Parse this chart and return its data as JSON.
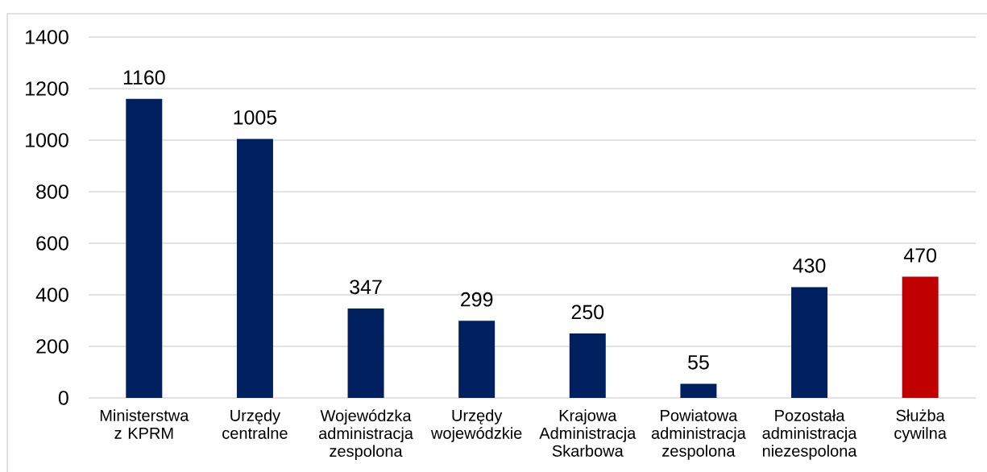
{
  "chart_data": {
    "type": "bar",
    "categories": [
      "Ministerstwa z KPRM",
      "Urzędy centralne",
      "Wojewódzka administracja zespolona",
      "Urzędy wojewódzkie",
      "Krajowa Administracja Skarbowa",
      "Powiatowa administracja zespolona",
      "Pozostała administracja niezespolona",
      "Służba cywilna"
    ],
    "values": [
      1160,
      1005,
      347,
      299,
      250,
      55,
      430,
      470
    ],
    "colors": [
      "#002060",
      "#002060",
      "#002060",
      "#002060",
      "#002060",
      "#002060",
      "#002060",
      "#c00000"
    ],
    "ylim": [
      0,
      1400
    ],
    "yticks": [
      0,
      200,
      400,
      600,
      800,
      1000,
      1200,
      1400
    ],
    "grid": "y",
    "data_labels": true
  }
}
